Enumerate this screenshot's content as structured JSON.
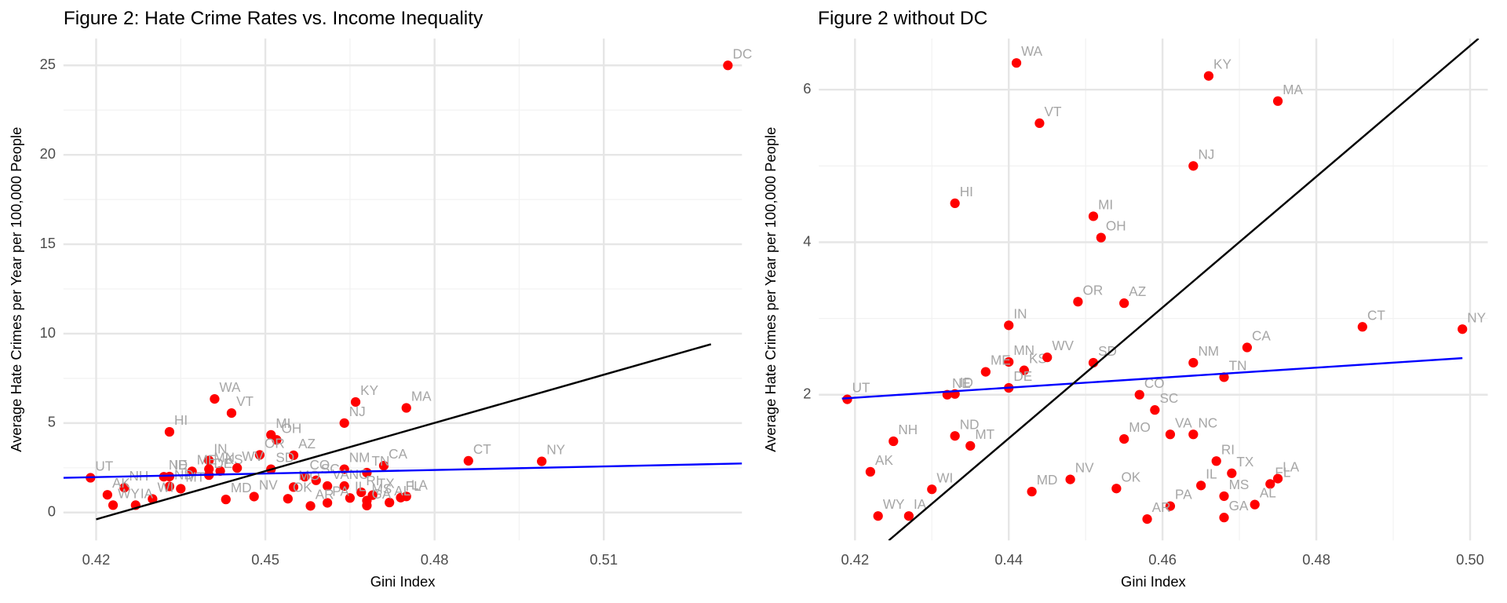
{
  "chart_data": [
    {
      "type": "scatter",
      "title": "Figure 2: Hate Crime Rates vs. Income Inequality",
      "x_label": "Gini Index",
      "y_label": "Average Hate Crimes per Year per 100,000 People",
      "color": "#ff0000",
      "grid": true,
      "xlim": [
        0.4142,
        0.5345
      ],
      "ylim": [
        -1.56,
        26.5
      ],
      "xticks": [
        0.42,
        0.45,
        0.48,
        0.51
      ],
      "yticks": [
        0,
        5,
        10,
        15,
        20,
        25
      ],
      "labels": [
        "WA",
        "KY",
        "MA",
        "VT",
        "NJ",
        "HI",
        "MI",
        "OH",
        "OR",
        "AZ",
        "CT",
        "NY",
        "IN",
        "NM",
        "CA",
        "MN",
        "KS",
        "WV",
        "SD",
        "ME",
        "NE",
        "ID",
        "DE",
        "CO",
        "UT",
        "TN",
        "SC",
        "MO",
        "VA",
        "NC",
        "NH",
        "ND",
        "MT",
        "RI",
        "TX",
        "IL",
        "FL",
        "LA",
        "MS",
        "AL",
        "AK",
        "WI",
        "WY",
        "IA",
        "MD",
        "NV",
        "OK",
        "PA",
        "AR",
        "GA",
        "DC"
      ],
      "x": [
        0.441,
        0.466,
        0.475,
        0.444,
        0.464,
        0.433,
        0.451,
        0.452,
        0.449,
        0.455,
        0.486,
        0.499,
        0.44,
        0.464,
        0.471,
        0.44,
        0.442,
        0.445,
        0.451,
        0.437,
        0.432,
        0.433,
        0.44,
        0.457,
        0.419,
        0.468,
        0.459,
        0.455,
        0.461,
        0.464,
        0.425,
        0.433,
        0.435,
        0.467,
        0.469,
        0.465,
        0.474,
        0.475,
        0.468,
        0.472,
        0.422,
        0.43,
        0.423,
        0.427,
        0.443,
        0.448,
        0.454,
        0.461,
        0.458,
        0.468,
        0.532
      ],
      "values": [
        6.35,
        6.18,
        5.85,
        5.56,
        5.0,
        4.51,
        4.34,
        4.06,
        3.22,
        3.2,
        2.89,
        2.86,
        2.91,
        2.42,
        2.62,
        2.43,
        2.32,
        2.49,
        2.42,
        2.3,
        2.0,
        2.01,
        2.09,
        2.0,
        1.94,
        2.23,
        1.8,
        1.42,
        1.48,
        1.48,
        1.39,
        1.46,
        1.33,
        1.13,
        0.97,
        0.81,
        0.83,
        0.9,
        0.67,
        0.56,
        0.99,
        0.76,
        0.41,
        0.41,
        0.73,
        0.89,
        0.77,
        0.54,
        0.37,
        0.39,
        25.0
      ],
      "lines": [
        {
          "color": "#0000ff",
          "x": [
            0.4142,
            0.5345
          ],
          "y": [
            1.94,
            2.74
          ]
        },
        {
          "color": "#000000",
          "x": [
            0.42,
            0.529
          ],
          "y": [
            -0.38,
            9.41
          ]
        }
      ]
    },
    {
      "type": "scatter",
      "title": "Figure 2 without DC",
      "x_label": "Gini Index",
      "y_label": "Average Hate Crimes per Year per 100,000 People",
      "color": "#ff0000",
      "grid": true,
      "xlim": [
        0.4153,
        0.5023
      ],
      "ylim": [
        0.09,
        6.67
      ],
      "xticks": [
        0.42,
        0.44,
        0.46,
        0.48,
        {
          "value": 0.5,
          "label": "0.50"
        }
      ],
      "yticks": [
        2,
        4,
        6
      ],
      "labels": [
        "WA",
        "KY",
        "MA",
        "VT",
        "NJ",
        "HI",
        "MI",
        "OH",
        "OR",
        "AZ",
        "CT",
        "NY",
        "IN",
        "NM",
        "CA",
        "MN",
        "KS",
        "WV",
        "SD",
        "ME",
        "NE",
        "ID",
        "DE",
        "CO",
        "UT",
        "TN",
        "SC",
        "MO",
        "VA",
        "NC",
        "NH",
        "ND",
        "MT",
        "RI",
        "TX",
        "IL",
        "FL",
        "LA",
        "MS",
        "AL",
        "AK",
        "WI",
        "WY",
        "IA",
        "MD",
        "NV",
        "OK",
        "PA",
        "AR",
        "GA"
      ],
      "x": [
        0.441,
        0.466,
        0.475,
        0.444,
        0.464,
        0.433,
        0.451,
        0.452,
        0.449,
        0.455,
        0.486,
        0.499,
        0.44,
        0.464,
        0.471,
        0.44,
        0.442,
        0.445,
        0.451,
        0.437,
        0.432,
        0.433,
        0.44,
        0.457,
        0.419,
        0.468,
        0.459,
        0.455,
        0.461,
        0.464,
        0.425,
        0.433,
        0.435,
        0.467,
        0.469,
        0.465,
        0.474,
        0.475,
        0.468,
        0.472,
        0.422,
        0.43,
        0.423,
        0.427,
        0.443,
        0.448,
        0.454,
        0.461,
        0.458,
        0.468
      ],
      "values": [
        6.35,
        6.18,
        5.85,
        5.56,
        5.0,
        4.51,
        4.34,
        4.06,
        3.22,
        3.2,
        2.89,
        2.86,
        2.91,
        2.42,
        2.62,
        2.43,
        2.32,
        2.49,
        2.42,
        2.3,
        2.0,
        2.01,
        2.09,
        2.0,
        1.94,
        2.23,
        1.8,
        1.42,
        1.48,
        1.48,
        1.39,
        1.46,
        1.33,
        1.13,
        0.97,
        0.81,
        0.83,
        0.9,
        0.67,
        0.56,
        0.99,
        0.76,
        0.41,
        0.41,
        0.73,
        0.89,
        0.77,
        0.54,
        0.37,
        0.39
      ],
      "lines": [
        {
          "color": "#0000ff",
          "x": [
            0.4183,
            0.499
          ],
          "y": [
            1.95,
            2.48
          ]
        },
        {
          "color": "#000000",
          "x": [
            0.4244,
            0.5011
          ],
          "y": [
            0.09,
            6.67
          ]
        }
      ]
    }
  ]
}
